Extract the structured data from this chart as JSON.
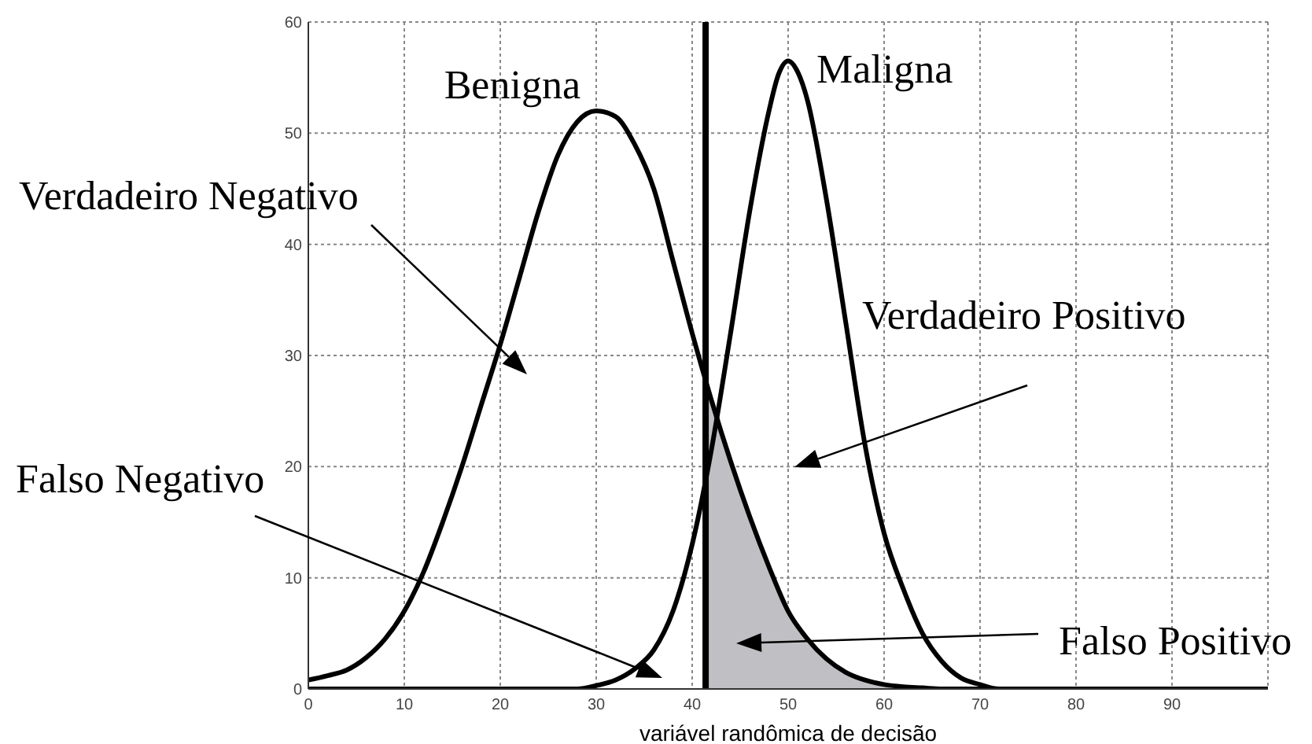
{
  "chart_data": {
    "type": "line",
    "xlabel": "variável randômica de decisão",
    "xlim": [
      0,
      100
    ],
    "ylim": [
      0,
      60
    ],
    "xticks": [
      0,
      10,
      20,
      30,
      40,
      50,
      60,
      70,
      80,
      90,
      {
        "value": 100,
        "label": null
      }
    ],
    "yticks": [
      0,
      10,
      20,
      30,
      40,
      50,
      60
    ],
    "grid": true,
    "legend": false,
    "marker": "none",
    "line_style": "solid",
    "series": [
      {
        "type": "area",
        "color": "#c0bfc4",
        "x": [
          41.4,
          42,
          44,
          46,
          48,
          50,
          52,
          54,
          56,
          58,
          60,
          62
        ],
        "values": [
          27.6,
          26,
          20.5,
          15.5,
          11,
          7,
          4.5,
          2.7,
          1.5,
          0.8,
          0.4,
          0.2
        ]
      },
      {
        "name": "Benigna",
        "color": "#000000",
        "x": [
          0,
          2,
          4,
          6,
          8,
          10,
          12,
          14,
          16,
          18,
          20,
          22,
          24,
          26,
          28,
          30,
          32,
          34,
          36,
          38,
          40,
          42,
          44,
          46,
          48,
          50,
          52,
          54,
          56,
          58,
          60,
          62,
          64,
          66,
          70,
          80,
          90,
          100
        ],
        "values": [
          0.8,
          1.2,
          1.7,
          2.8,
          4.5,
          7,
          10.5,
          15,
          20,
          25.5,
          31,
          37,
          43,
          48,
          51,
          52,
          51.5,
          49,
          45,
          38.5,
          32,
          26,
          20.5,
          15.5,
          11,
          7,
          4.5,
          2.7,
          1.5,
          0.8,
          0.4,
          0.2,
          0.1,
          0,
          0,
          0,
          0,
          0
        ]
      },
      {
        "name": "Maligna",
        "color": "#000000",
        "x": [
          0,
          28,
          30,
          32,
          34,
          36,
          38,
          40,
          42,
          44,
          46,
          48,
          49,
          50,
          51,
          52,
          54,
          56,
          58,
          60,
          62,
          64,
          66,
          68,
          70,
          72,
          80,
          90,
          100
        ],
        "values": [
          0,
          0,
          0.3,
          0.8,
          1.8,
          3.5,
          7,
          13,
          21.5,
          32,
          43,
          52,
          55.3,
          56.5,
          55.5,
          53,
          44,
          33,
          22,
          14,
          9,
          5,
          2.5,
          1,
          0.4,
          0,
          0,
          0,
          0
        ]
      }
    ],
    "ref_lines": [
      {
        "axis": "x",
        "value": 41.4,
        "color": "#000000"
      }
    ],
    "annotations": [
      "Verdadeiro Negativo",
      "Verdadeiro Positivo",
      "Falso Negativo",
      "Falso Positivo"
    ]
  }
}
